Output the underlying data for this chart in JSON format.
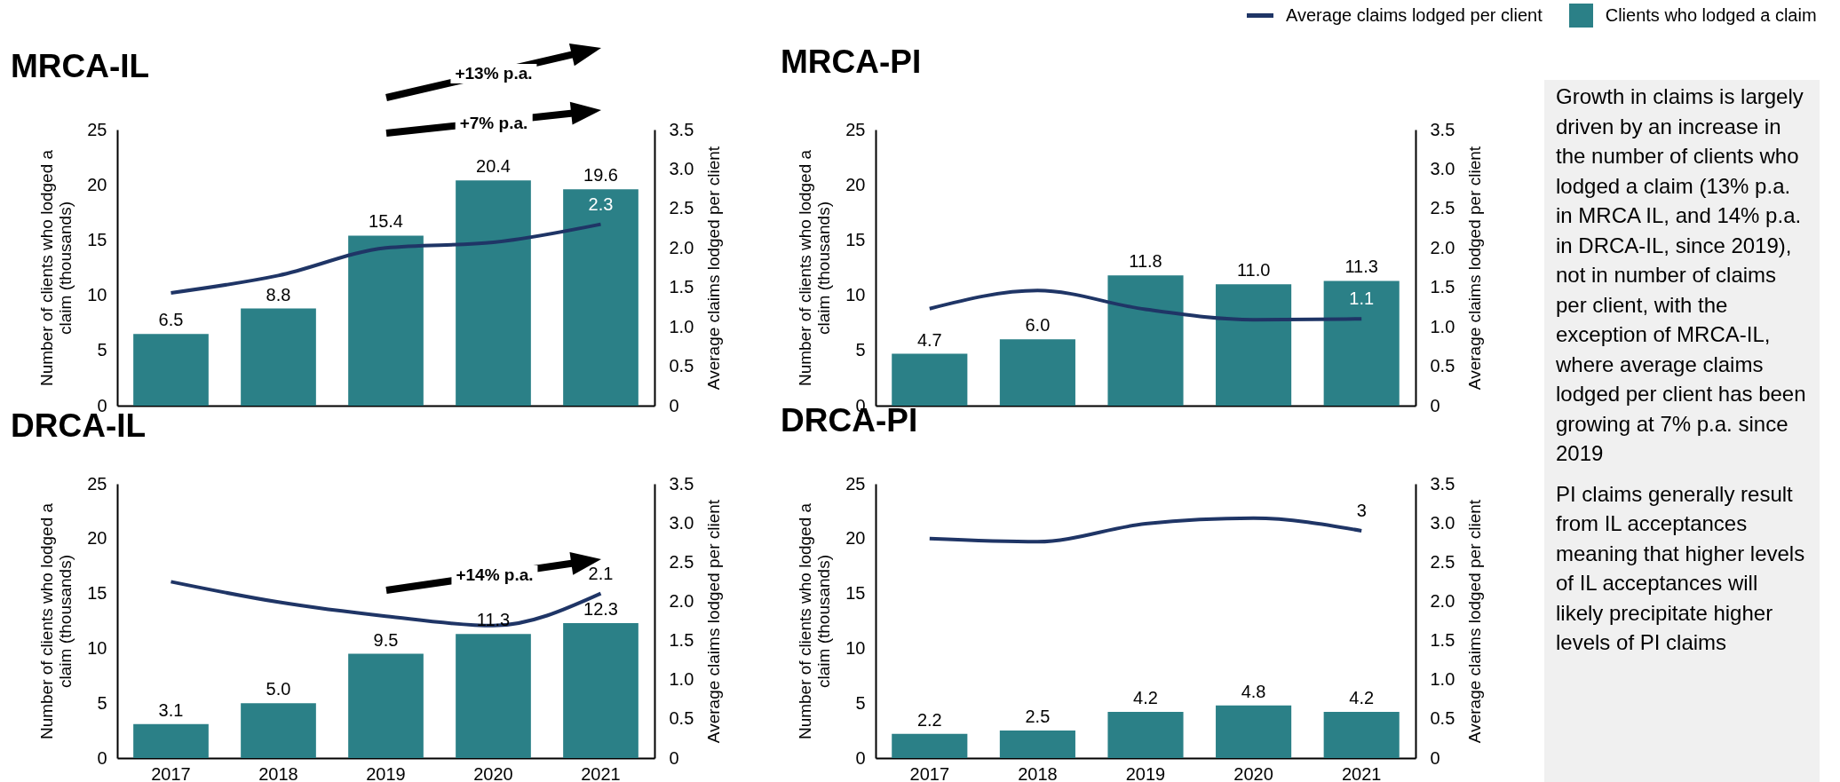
{
  "chart_data": [
    {
      "type": "bar",
      "title": "MRCA-IL",
      "categories": [
        "2017",
        "2018",
        "2019",
        "2020",
        "2021"
      ],
      "ylabel": "Number of clients who lodged a claim (thousands)",
      "y2label": "Average claims lodged per client",
      "ylim": [
        0,
        25
      ],
      "yticks": [
        0,
        5,
        10,
        15,
        20,
        25
      ],
      "y2lim": [
        0,
        3.5
      ],
      "y2ticks": [
        0,
        0.5,
        {
          "value": 1,
          "label": "1.0"
        },
        1.5,
        {
          "value": 2,
          "label": "2.0"
        },
        2.5,
        {
          "value": 3,
          "label": "3.0"
        },
        3.5
      ],
      "tick_labels": "y",
      "annotations": [
        "+13% p.a.",
        "+7% p.a."
      ],
      "series": [
        {
          "type": "line",
          "axis": "y2",
          "color": "#1f3566",
          "values": [
            1.43,
            1.65,
            2.0,
            2.07,
            2.3
          ],
          "value_labels": [
            null,
            null,
            null,
            null,
            "2.3"
          ]
        },
        {
          "color": "#2b8087",
          "values": [
            6.5,
            8.8,
            15.4,
            20.4,
            19.6
          ],
          "value_labels": [
            "6.5",
            "8.8",
            "15.4",
            "20.4",
            "19.6"
          ]
        }
      ]
    },
    {
      "type": "bar",
      "title": "MRCA-PI",
      "categories": [
        "2017",
        "2018",
        "2019",
        "2020",
        "2021"
      ],
      "ylabel": "Number of clients who lodged a claim (thousands)",
      "y2label": "Average claims lodged per client",
      "ylim": [
        0,
        25
      ],
      "yticks": [
        0,
        5,
        10,
        15,
        20,
        25
      ],
      "y2lim": [
        0,
        3.5
      ],
      "y2ticks": [
        0,
        0.5,
        {
          "value": 1,
          "label": "1.0"
        },
        1.5,
        {
          "value": 2,
          "label": "2.0"
        },
        2.5,
        {
          "value": 3,
          "label": "3.0"
        },
        3.5
      ],
      "tick_labels": "y",
      "legend": "top right",
      "series": [
        {
          "name": "Average claims lodged per client",
          "type": "line",
          "axis": "y2",
          "color": "#1f3566",
          "values": [
            1.23,
            1.46,
            1.22,
            1.09,
            1.1
          ],
          "value_labels": [
            null,
            null,
            null,
            null,
            "1.1"
          ]
        },
        {
          "name": "Clients who lodged a claim",
          "color": "#2b8087",
          "values": [
            4.7,
            6.0,
            11.8,
            11.0,
            11.3
          ],
          "value_labels": [
            "4.7",
            "6.0",
            "11.8",
            "11.0",
            "11.3"
          ]
        }
      ]
    },
    {
      "type": "bar",
      "title": "DRCA-IL",
      "categories": [
        "2017",
        "2018",
        "2019",
        "2020",
        "2021"
      ],
      "ylabel": "Number of clients who lodged a claim (thousands)",
      "y2label": "Average claims lodged per client",
      "ylim": [
        0,
        25
      ],
      "yticks": [
        0,
        5,
        10,
        15,
        20,
        25
      ],
      "y2lim": [
        0,
        3.5
      ],
      "y2ticks": [
        0,
        0.5,
        {
          "value": 1,
          "label": "1.0"
        },
        1.5,
        {
          "value": 2,
          "label": "2.0"
        },
        2.5,
        {
          "value": 3,
          "label": "3.0"
        },
        3.5
      ],
      "annotations": [
        "+14% p.a."
      ],
      "series": [
        {
          "type": "line",
          "axis": "y2",
          "color": "#1f3566",
          "values": [
            2.25,
            1.99,
            1.81,
            1.69,
            2.1
          ],
          "value_labels": [
            null,
            null,
            null,
            null,
            "2.1"
          ]
        },
        {
          "color": "#2b8087",
          "values": [
            3.1,
            5.0,
            9.5,
            11.3,
            12.3
          ],
          "value_labels": [
            "3.1",
            "5.0",
            "9.5",
            "11.3",
            "12.3"
          ]
        }
      ]
    },
    {
      "type": "bar",
      "title": "DRCA-PI",
      "categories": [
        "2017",
        "2018",
        "2019",
        "2020",
        "2021"
      ],
      "ylabel": "Number of clients who lodged a claim (thousands)",
      "y2label": "Average claims lodged per client",
      "ylim": [
        0,
        25
      ],
      "yticks": [
        0,
        5,
        10,
        15,
        20,
        25
      ],
      "y2lim": [
        0,
        3.5
      ],
      "y2ticks": [
        0,
        0.5,
        {
          "value": 1,
          "label": "1.0"
        },
        1.5,
        {
          "value": 2,
          "label": "2.0"
        },
        2.5,
        {
          "value": 3,
          "label": "3.0"
        },
        3.5
      ],
      "series": [
        {
          "type": "line",
          "axis": "y2",
          "color": "#1f3566",
          "values": [
            2.8,
            2.76,
            2.99,
            3.06,
            2.9
          ],
          "value_labels": [
            null,
            null,
            null,
            null,
            "3"
          ]
        },
        {
          "color": "#2b8087",
          "values": [
            2.2,
            2.5,
            4.2,
            4.8,
            4.2
          ],
          "value_labels": [
            "2.2",
            "2.5",
            "4.2",
            "4.8",
            "4.2"
          ]
        }
      ]
    },
    {
      "type": "other",
      "annotations": [
        "Growth in claims is largely driven by an increase in the number of clients who lodged a claim (13% p.a. in MRCA IL, and 14% p.a. in DRCA-IL, since 2019), not in number of claims per client, with the exception of MRCA-IL, where average claims lodged per client has been growing at 7% p.a. since 2019",
        "PI claims generally result from IL acceptances meaning that higher levels of IL acceptances will likely precipitate higher levels of PI claims"
      ]
    }
  ]
}
